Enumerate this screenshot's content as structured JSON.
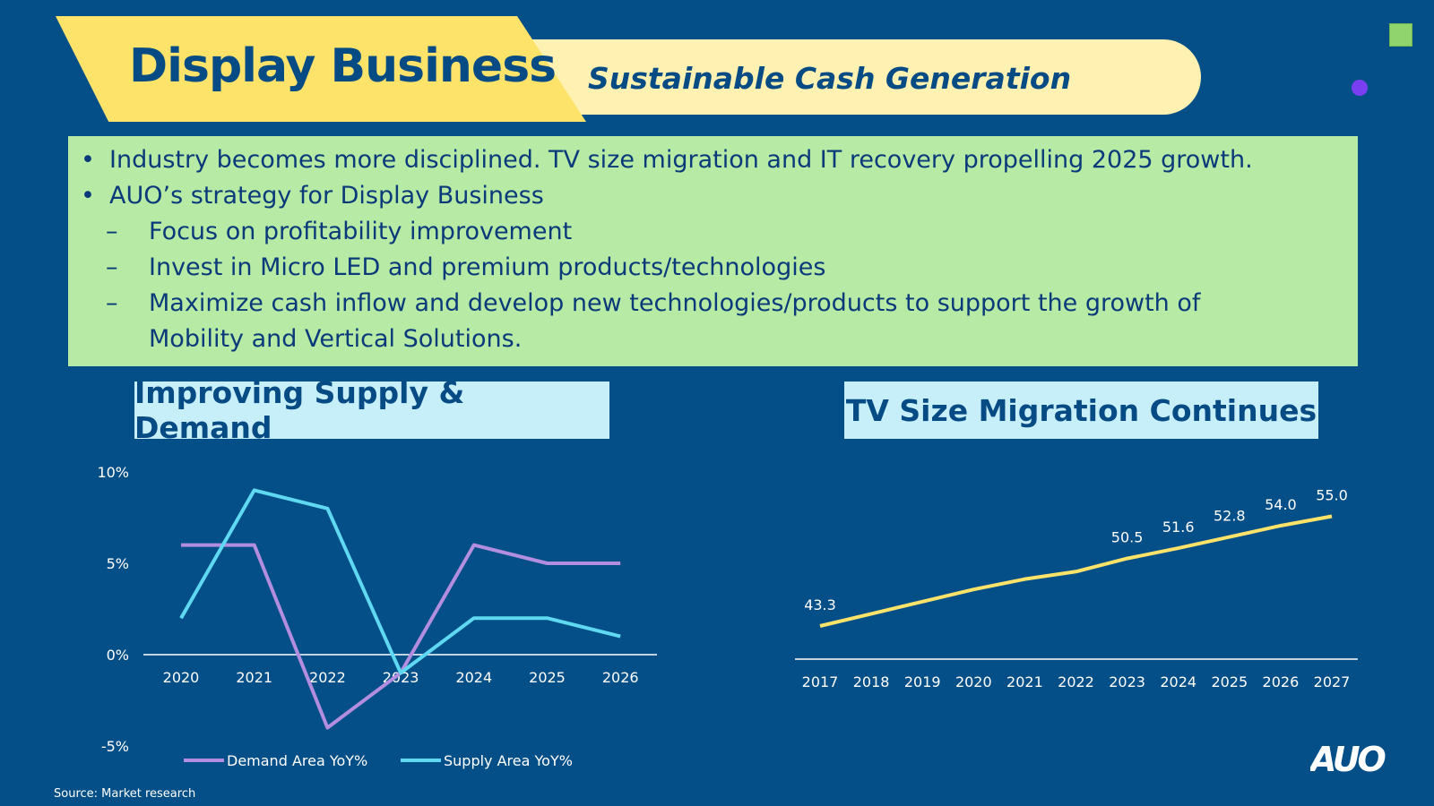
{
  "header": {
    "title": "Display Business",
    "subtitle": "Sustainable Cash Generation"
  },
  "bullets": {
    "b1_mark": "•",
    "b1": "Industry becomes more disciplined. TV size migration and IT recovery propelling 2025 growth.",
    "b2_mark": "•",
    "b2": "AUO’s strategy for Display Business",
    "s1_mark": "–",
    "s1": "Focus on profitability improvement",
    "s2_mark": "–",
    "s2": "Invest in Micro LED and premium products/technologies",
    "s3_mark": "–",
    "s3_line1": "Maximize cash inflow and develop new technologies/products to support the growth of",
    "s3_line2": "Mobility and Vertical Solutions."
  },
  "colors": {
    "background": "#044f87",
    "demand": "#b38ee0",
    "supply": "#5fd8f2",
    "tv_line": "#fde36a"
  },
  "chart_data": [
    {
      "type": "line",
      "title": "Improving Supply & Demand",
      "categories": [
        "2020",
        "2021",
        "2022",
        "2023",
        "2024",
        "2025",
        "2026"
      ],
      "series": [
        {
          "name": "Demand Area YoY%",
          "values": [
            6,
            6,
            -4,
            -1,
            6,
            5,
            5
          ]
        },
        {
          "name": "Supply Area YoY%",
          "values": [
            2,
            9,
            8,
            -1,
            2,
            2,
            1
          ]
        }
      ],
      "ylim": [
        -5,
        10
      ],
      "yticks": [
        -5,
        0,
        5,
        10
      ],
      "ytick_labels": [
        "-5%",
        "0%",
        "5%",
        "10%"
      ],
      "legend": "bottom"
    },
    {
      "type": "line",
      "title": "TV Size Migration Continues",
      "categories": [
        "2017",
        "2018",
        "2019",
        "2020",
        "2021",
        "2022",
        "2023",
        "2024",
        "2025",
        "2026",
        "2027"
      ],
      "values": [
        43.3,
        44.6,
        45.9,
        47.2,
        48.3,
        49.1,
        50.5,
        51.6,
        52.8,
        54.0,
        55.0
      ],
      "labels": [
        "43.3",
        "",
        "",
        "",
        "",
        "",
        "50.5",
        "51.6",
        "52.8",
        "54.0",
        "55.0"
      ],
      "ylim": [
        40,
        57
      ]
    }
  ],
  "footer": {
    "source": "Source: Market research",
    "logo": "AUO"
  }
}
